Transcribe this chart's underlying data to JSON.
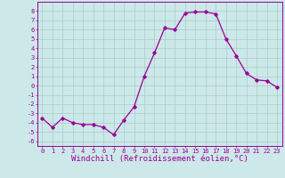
{
  "x": [
    0,
    1,
    2,
    3,
    4,
    5,
    6,
    7,
    8,
    9,
    10,
    11,
    12,
    13,
    14,
    15,
    16,
    17,
    18,
    19,
    20,
    21,
    22,
    23
  ],
  "y": [
    -3.5,
    -4.5,
    -3.5,
    -4.0,
    -4.2,
    -4.2,
    -4.5,
    -5.3,
    -3.7,
    -2.3,
    1.0,
    3.5,
    6.2,
    6.0,
    7.8,
    7.9,
    7.9,
    7.7,
    5.0,
    3.2,
    1.3,
    0.6,
    0.5,
    -0.2
  ],
  "line_color": "#990099",
  "marker": "D",
  "marker_size": 1.8,
  "background_color": "#cce8e8",
  "grid_color": "#aacccc",
  "xlabel": "Windchill (Refroidissement éolien,°C)",
  "ylabel": "",
  "xlim": [
    -0.5,
    23.5
  ],
  "ylim": [
    -6.5,
    9.0
  ],
  "yticks": [
    -6,
    -5,
    -4,
    -3,
    -2,
    -1,
    0,
    1,
    2,
    3,
    4,
    5,
    6,
    7,
    8
  ],
  "xticks": [
    0,
    1,
    2,
    3,
    4,
    5,
    6,
    7,
    8,
    9,
    10,
    11,
    12,
    13,
    14,
    15,
    16,
    17,
    18,
    19,
    20,
    21,
    22,
    23
  ],
  "tick_label_fontsize": 5.0,
  "xlabel_fontsize": 6.5,
  "line_width": 0.9
}
